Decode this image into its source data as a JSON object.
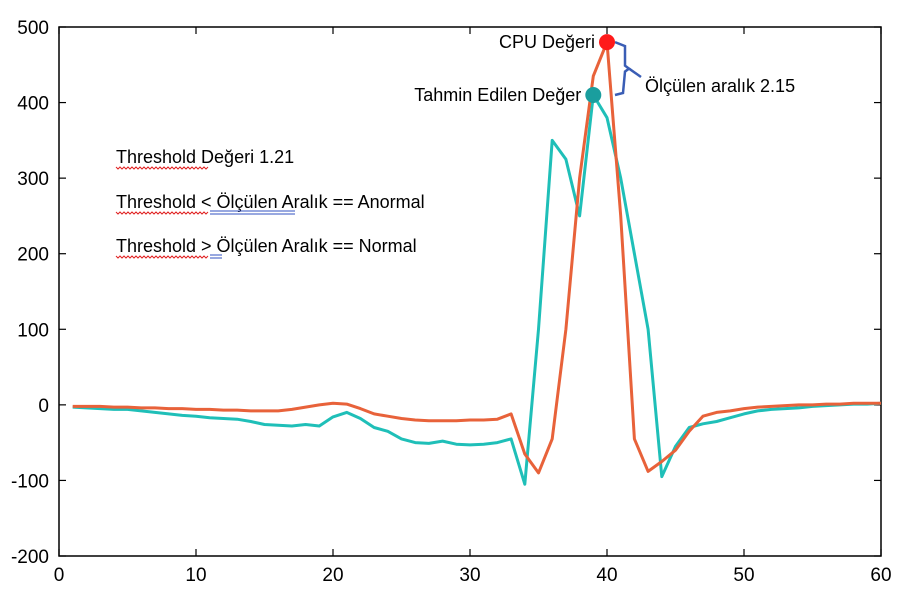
{
  "chart_data": {
    "type": "line",
    "xlim": [
      0,
      60
    ],
    "ylim": [
      -200,
      500
    ],
    "x_ticks": [
      "0",
      "10",
      "20",
      "30",
      "40",
      "50",
      "60"
    ],
    "y_ticks": [
      "500",
      "400",
      "300",
      "200",
      "100",
      "0",
      "-100",
      "-200"
    ],
    "grid": false,
    "series": [
      {
        "color": "#1fbfb8",
        "x": [
          1,
          2,
          3,
          4,
          5,
          6,
          7,
          8,
          9,
          10,
          11,
          12,
          13,
          14,
          15,
          16,
          17,
          18,
          19,
          20,
          21,
          22,
          23,
          24,
          25,
          26,
          27,
          28,
          29,
          30,
          31,
          32,
          33,
          34,
          35,
          36,
          37,
          38,
          39,
          40,
          41,
          42,
          43,
          44,
          45,
          46,
          47,
          48,
          49,
          50,
          51,
          52,
          53,
          54,
          55,
          56,
          57,
          58,
          59,
          60
        ],
        "y": [
          -3,
          -4,
          -5,
          -6,
          -6,
          -8,
          -10,
          -12,
          -14,
          -15,
          -17,
          -18,
          -19,
          -22,
          -26,
          -27,
          -28,
          -26,
          -28,
          -16,
          -10,
          -18,
          -30,
          -35,
          -45,
          -50,
          -51,
          -48,
          -52,
          -53,
          -52,
          -50,
          -45,
          -105,
          100,
          350,
          325,
          250,
          410,
          380,
          300,
          200,
          100,
          -95,
          -55,
          -30,
          -25,
          -22,
          -17,
          -12,
          -8,
          -6,
          -5,
          -4,
          -2,
          -1,
          0,
          1,
          1,
          2
        ]
      },
      {
        "color": "#e8623a",
        "x": [
          1,
          2,
          3,
          4,
          5,
          6,
          7,
          8,
          9,
          10,
          11,
          12,
          13,
          14,
          15,
          16,
          17,
          18,
          19,
          20,
          21,
          22,
          23,
          24,
          25,
          26,
          27,
          28,
          29,
          30,
          31,
          32,
          33,
          34,
          35,
          36,
          37,
          38,
          39,
          40,
          41,
          42,
          43,
          44,
          45,
          46,
          47,
          48,
          49,
          50,
          51,
          52,
          53,
          54,
          55,
          56,
          57,
          58,
          59,
          60
        ],
        "y": [
          -2,
          -2,
          -2,
          -3,
          -3,
          -4,
          -4,
          -5,
          -5,
          -6,
          -6,
          -7,
          -7,
          -8,
          -8,
          -8,
          -6,
          -3,
          0,
          2,
          1,
          -5,
          -12,
          -15,
          -18,
          -20,
          -21,
          -21,
          -21,
          -20,
          -20,
          -19,
          -12,
          -65,
          -90,
          -45,
          100,
          300,
          435,
          480,
          250,
          -45,
          -88,
          -75,
          -60,
          -35,
          -15,
          -10,
          -8,
          -5,
          -3,
          -2,
          -1,
          0,
          0,
          1,
          1,
          2,
          2,
          2
        ]
      }
    ],
    "markers": [
      {
        "label": "CPU Değeri",
        "x": 40,
        "y": 480,
        "color": "#ff1a1a"
      },
      {
        "label": "Tahmin Edilen Değer",
        "x": 39,
        "y": 410,
        "color": "#1a9e9e"
      }
    ],
    "range_label": "Ölçülen aralık 2.15",
    "annotations": [
      "Threshold Değeri 1.21",
      "Threshold < Ölçülen Aralık == Anormal",
      "Threshold > Ölçülen Aralık == Normal"
    ]
  }
}
